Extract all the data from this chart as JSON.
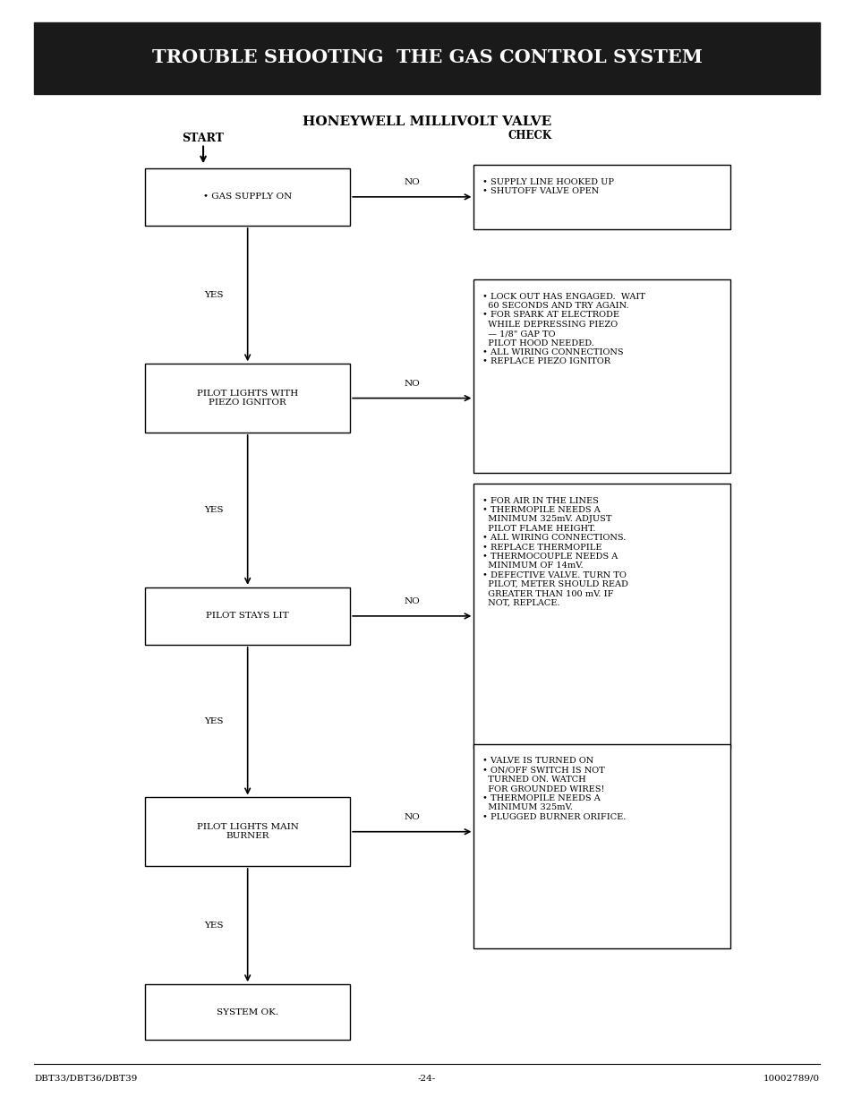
{
  "title": "TROUBLE SHOOTING  THE GAS CONTROL SYSTEM",
  "title_bg": "#1a1a1a",
  "title_fg": "#ffffff",
  "subtitle": "HONEYWELL MILLIVOLT VALVE",
  "footer_left": "DBT33/DBT36/DBT39",
  "footer_center": "-24-",
  "footer_right": "10002789/0",
  "page_bg": "#ffffff"
}
